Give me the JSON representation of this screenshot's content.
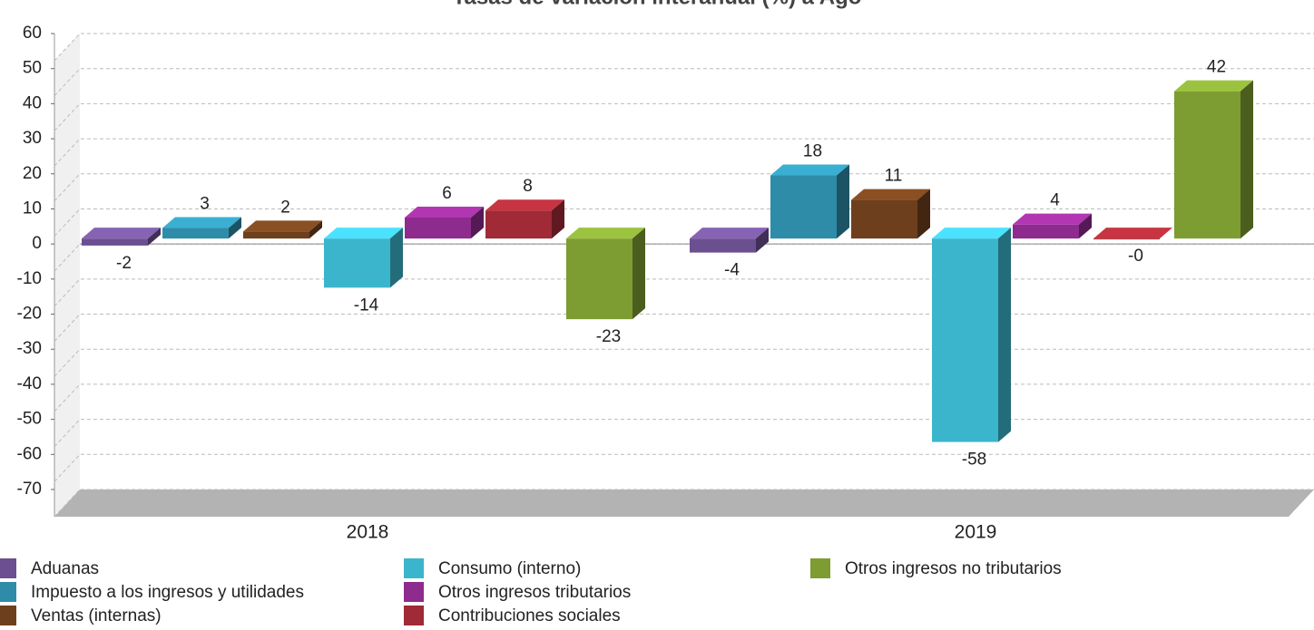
{
  "chart_data": {
    "type": "bar3d",
    "title": "Tasas de variación interanual (%) a Ago",
    "categories": [
      "2018",
      "2019"
    ],
    "series": [
      {
        "name": "Aduanas",
        "color": "#6b4f90",
        "values": [
          -2,
          -4
        ]
      },
      {
        "name": "Impuesto a los ingresos y utilidades",
        "color": "#2f8ca8",
        "values": [
          3,
          18
        ]
      },
      {
        "name": "Ventas (internas)",
        "color": "#6e3f1c",
        "values": [
          2,
          11
        ]
      },
      {
        "name": "Consumo (interno)",
        "color": "#3bb5cc",
        "values": [
          -14,
          -58
        ]
      },
      {
        "name": "Otros ingresos tributarios",
        "color": "#8e2b8e",
        "values": [
          6,
          4
        ]
      },
      {
        "name": "Contribuciones sociales",
        "color": "#a02a35",
        "values": [
          8,
          0
        ],
        "value_labels": [
          "8",
          "-0"
        ]
      },
      {
        "name": "Otros ingresos no tributarios",
        "color": "#7d9c32",
        "values": [
          -23,
          42
        ]
      }
    ],
    "ylim": [
      -70,
      60
    ],
    "yticks": [
      60,
      50,
      40,
      30,
      20,
      10,
      0,
      -10,
      -20,
      -30,
      -40,
      -50,
      -60,
      -70
    ],
    "grid": true
  }
}
